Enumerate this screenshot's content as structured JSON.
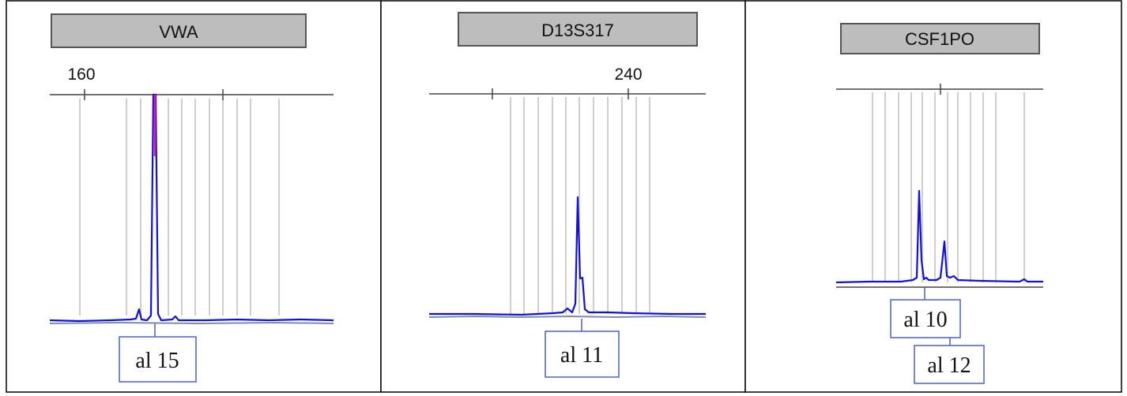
{
  "chart_data": [
    {
      "type": "line",
      "locus": "VWA",
      "tick_labels": [
        "160"
      ],
      "peaks": [
        {
          "allele": "al 15",
          "height": 0.96,
          "offscale": true
        }
      ],
      "alleles": [
        "al 15"
      ],
      "colors": {
        "trace": "#1010e6",
        "offscale": "#e0208c"
      }
    },
    {
      "type": "line",
      "locus": "D13S317",
      "tick_labels": [
        "240"
      ],
      "peaks": [
        {
          "allele": "al 11",
          "height": 0.55
        }
      ],
      "alleles": [
        "al 11"
      ],
      "colors": {
        "trace": "#1010e6"
      }
    },
    {
      "type": "line",
      "locus": "CSF1PO",
      "tick_labels": [],
      "peaks": [
        {
          "allele": "al 10",
          "height": 0.48
        },
        {
          "allele": "al 12",
          "height": 0.22
        }
      ],
      "alleles": [
        "al 10",
        "al 12"
      ],
      "colors": {
        "trace": "#1010e6"
      }
    }
  ]
}
